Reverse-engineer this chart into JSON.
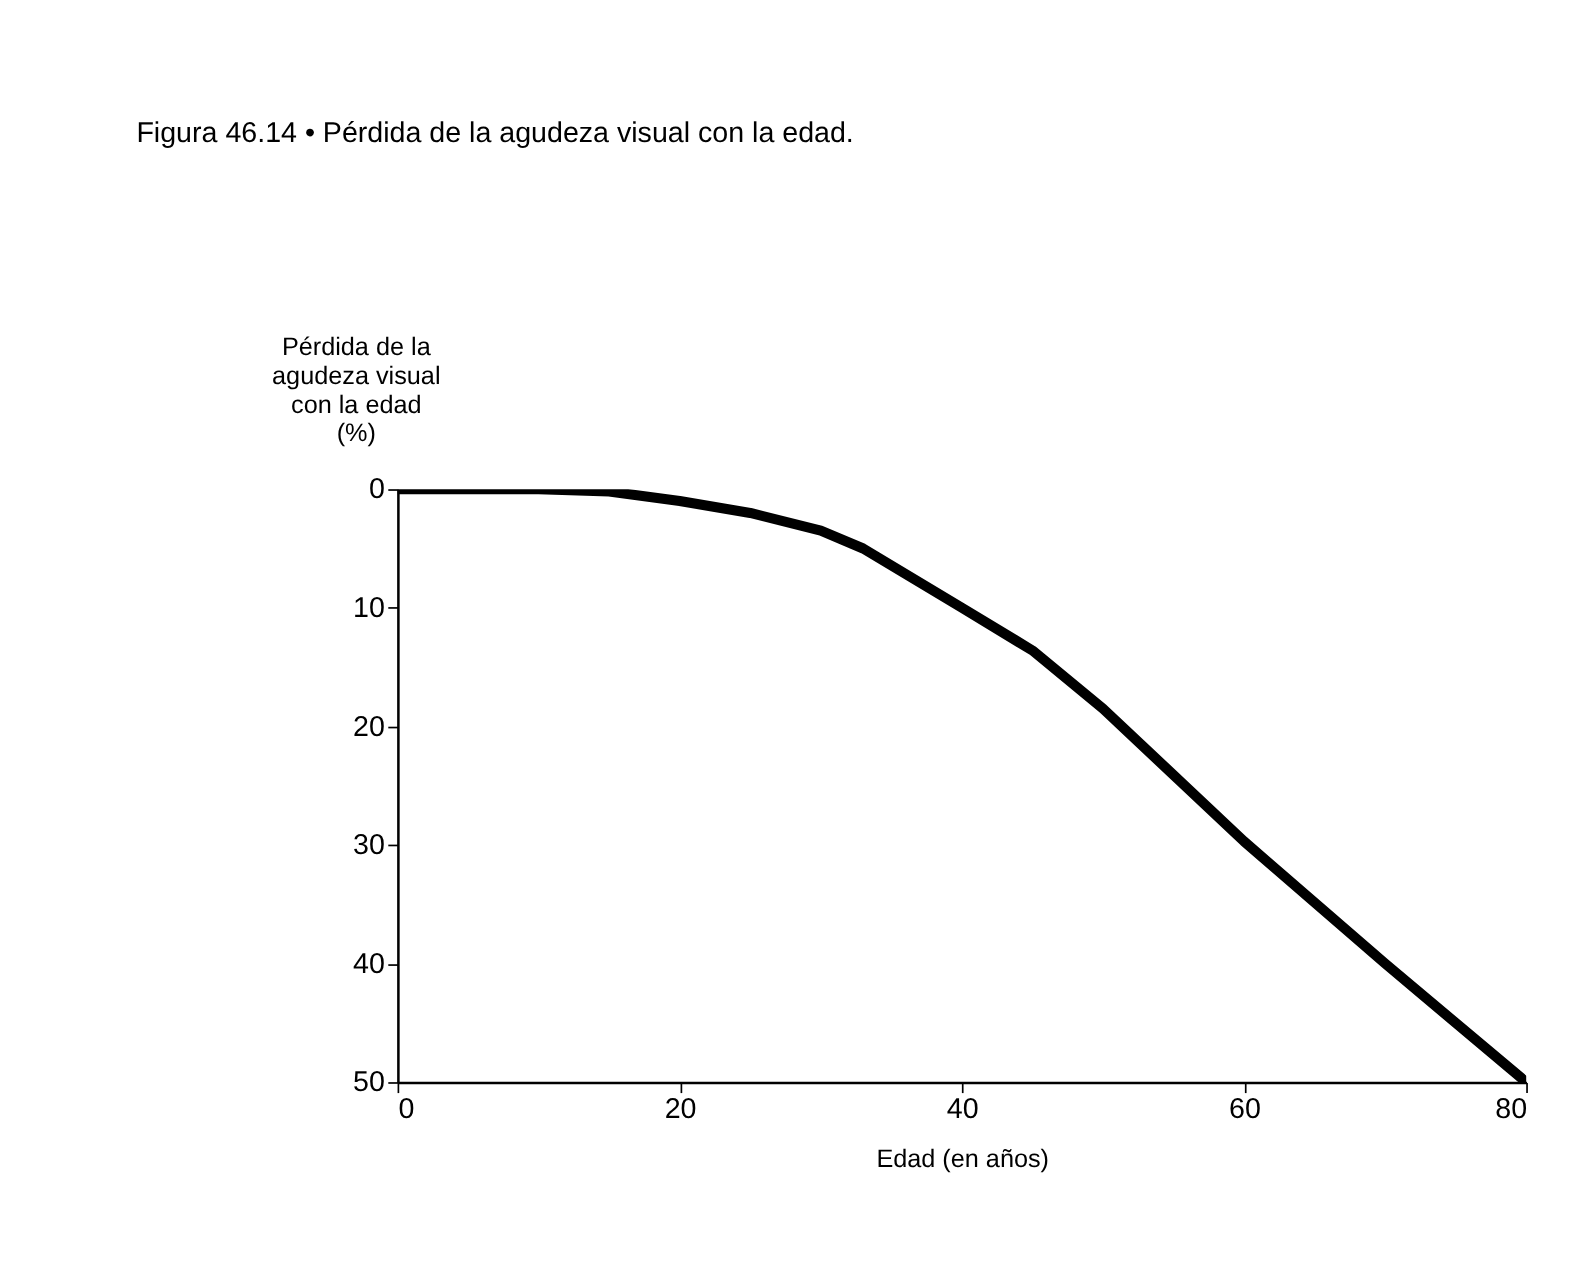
{
  "chart_data": {
    "type": "line",
    "title": "Figura 46.14 • Pérdida de la agudeza visual con la edad.",
    "xlabel": "Edad (en años)",
    "ylabel": "Pérdida de la\nagudeza visual\ncon la edad\n(%)",
    "x": [
      0,
      5,
      10,
      15,
      20,
      25,
      30,
      33,
      40,
      45,
      50,
      60,
      70,
      80
    ],
    "series": [
      {
        "color": "#000000",
        "values": [
          0,
          0,
          0,
          0.2,
          1,
          2,
          3.5,
          5,
          10,
          13.6,
          18.5,
          29.7,
          40,
          50
        ]
      }
    ],
    "xlim": [
      0,
      80
    ],
    "xticks": [
      0,
      20,
      40,
      60,
      80
    ],
    "ylim": [
      50,
      0
    ],
    "yticks": [
      0,
      10,
      20,
      30,
      40,
      50
    ],
    "grid": false,
    "marker": "none",
    "line_style": "solid"
  }
}
